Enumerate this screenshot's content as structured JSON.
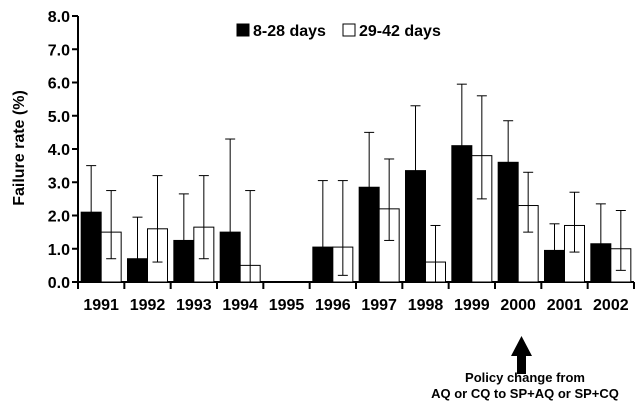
{
  "chart_data": {
    "type": "bar",
    "title": "",
    "xlabel": "",
    "ylabel": "Failure rate (%)",
    "ylim": [
      0,
      8
    ],
    "yticks": [
      "0.0",
      "1.0",
      "2.0",
      "3.0",
      "4.0",
      "5.0",
      "6.0",
      "7.0",
      "8.0"
    ],
    "grid": false,
    "legend_position": "top-center",
    "categories": [
      "1991",
      "1992",
      "1993",
      "1994",
      "1995",
      "1996",
      "1997",
      "1998",
      "1999",
      "2000",
      "2001",
      "2002"
    ],
    "series": [
      {
        "name": "8-28 days",
        "color": "#000000",
        "values": [
          2.1,
          0.7,
          1.25,
          1.5,
          null,
          1.05,
          2.85,
          3.35,
          4.1,
          3.6,
          0.95,
          1.15
        ],
        "error_lower": [
          1.5,
          0.2,
          0.65,
          0.0,
          null,
          0.0,
          2.3,
          1.8,
          2.45,
          2.4,
          0.2,
          0.2
        ],
        "error_upper": [
          3.5,
          1.95,
          2.65,
          4.3,
          null,
          3.05,
          4.5,
          5.3,
          5.95,
          4.85,
          1.75,
          2.35
        ]
      },
      {
        "name": "29-42 days",
        "color": "#ffffff",
        "values": [
          1.5,
          1.6,
          1.65,
          0.5,
          null,
          1.05,
          2.2,
          0.6,
          3.8,
          2.3,
          1.7,
          1.0
        ],
        "error_lower": [
          0.7,
          0.6,
          0.7,
          0.0,
          null,
          0.2,
          1.25,
          0.0,
          2.5,
          1.5,
          0.9,
          0.35
        ],
        "error_upper": [
          2.75,
          3.2,
          3.2,
          2.75,
          null,
          3.05,
          3.7,
          1.7,
          5.6,
          3.3,
          2.7,
          2.15
        ]
      }
    ],
    "annotation": {
      "category": "2000",
      "line1": "Policy change from",
      "line2": "AQ or CQ to SP+AQ or SP+CQ"
    }
  }
}
